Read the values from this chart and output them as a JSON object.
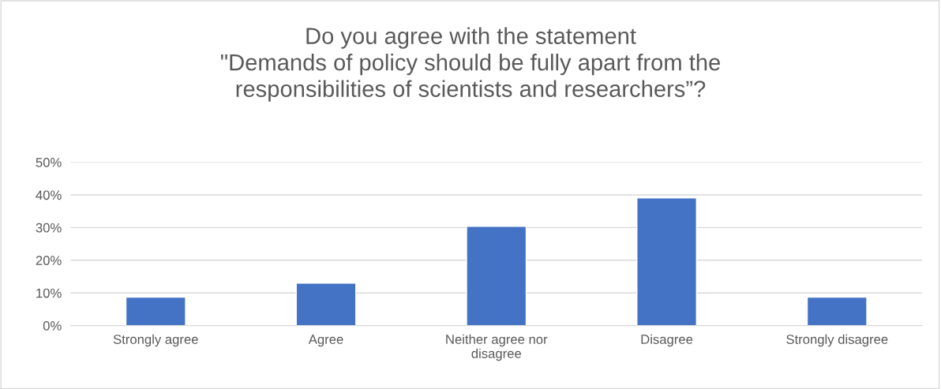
{
  "chart_data": {
    "type": "bar",
    "title": "Do you agree with the statement\n\"Demands of policy should be fully apart from the\nresponsibilities of scientists and researchers”?",
    "categories": [
      "Strongly agree",
      "Agree",
      "Neither agree nor disagree",
      "Disagree",
      "Strongly disagree"
    ],
    "values": [
      8.7,
      13.0,
      30.4,
      39.1,
      8.7
    ],
    "color": "#4472c4",
    "ylim": [
      0,
      50
    ],
    "yticks": [
      {
        "value": 0,
        "label": "0%"
      },
      {
        "value": 10,
        "label": "10%"
      },
      {
        "value": 20,
        "label": "20%"
      },
      {
        "value": 30,
        "label": "30%"
      },
      {
        "value": 40,
        "label": "40%"
      },
      {
        "value": 50,
        "label": "50%"
      }
    ],
    "grid": "y",
    "legend": false
  }
}
